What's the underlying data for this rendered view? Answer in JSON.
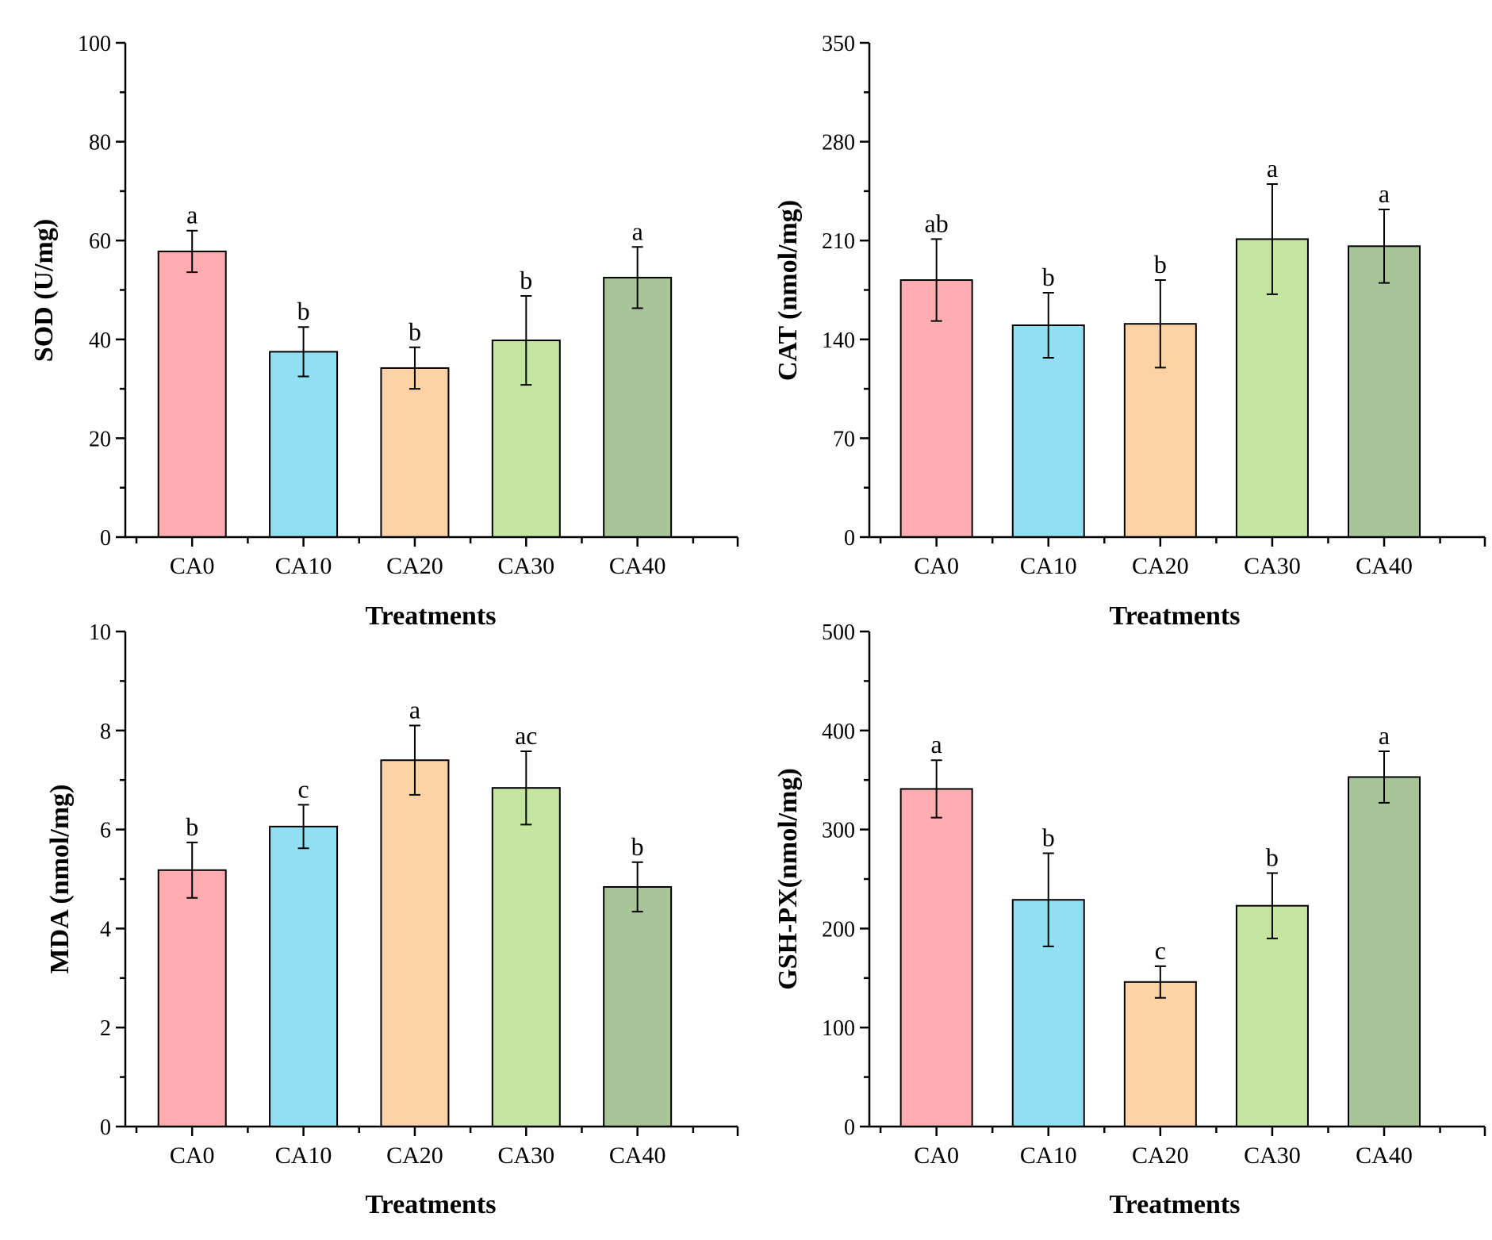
{
  "colors": {
    "CA0": "#ffadb0",
    "CA10": "#8fe0f2",
    "CA20": "#fdd3a6",
    "CA30": "#c4e6a1",
    "CA40": "#a8c599"
  },
  "chart_data": [
    {
      "type": "bar",
      "id": "sod",
      "ylabel": "SOD (U/mg)",
      "xlabel": "Treatments",
      "categories": [
        "CA0",
        "CA10",
        "CA20",
        "CA30",
        "CA40"
      ],
      "values": [
        57.8,
        37.5,
        34.2,
        39.8,
        52.5
      ],
      "errors": [
        4.2,
        5.0,
        4.2,
        9.0,
        6.2
      ],
      "significance": [
        "a",
        "b",
        "b",
        "b",
        "a"
      ],
      "ylim": [
        0,
        100
      ],
      "yticks": [
        0,
        20,
        40,
        60,
        80,
        100
      ],
      "ytick_labels": [
        "0",
        "20",
        "40",
        "60",
        "80",
        "100"
      ]
    },
    {
      "type": "bar",
      "id": "cat",
      "ylabel": "CAT (nmol/mg)",
      "xlabel": "Treatments",
      "categories": [
        "CA0",
        "CA10",
        "CA20",
        "CA30",
        "CA40"
      ],
      "values": [
        182,
        150,
        151,
        211,
        206
      ],
      "errors": [
        29,
        23,
        31,
        39,
        26
      ],
      "significance": [
        "ab",
        "b",
        "b",
        "a",
        "a"
      ],
      "ylim": [
        0,
        350
      ],
      "yticks": [
        0,
        70,
        140,
        210,
        280,
        350
      ],
      "ytick_labels": [
        "0",
        "70",
        "140",
        "210",
        "280",
        "350"
      ]
    },
    {
      "type": "bar",
      "id": "mda",
      "ylabel": "MDA (nmol/mg)",
      "xlabel": "Treatments",
      "categories": [
        "CA0",
        "CA10",
        "CA20",
        "CA30",
        "CA40"
      ],
      "values": [
        5.18,
        6.06,
        7.4,
        6.84,
        4.84
      ],
      "errors": [
        0.56,
        0.44,
        0.7,
        0.74,
        0.5
      ],
      "significance": [
        "b",
        "c",
        "a",
        "ac",
        "b"
      ],
      "ylim": [
        0,
        10
      ],
      "yticks": [
        0,
        2,
        4,
        6,
        8,
        10
      ],
      "ytick_labels": [
        "0",
        "2",
        "4",
        "6",
        "8",
        "10"
      ]
    },
    {
      "type": "bar",
      "id": "gshpx",
      "ylabel": "GSH-PX(nmol/mg)",
      "xlabel": "Treatments",
      "categories": [
        "CA0",
        "CA10",
        "CA20",
        "CA30",
        "CA40"
      ],
      "values": [
        341,
        229,
        146,
        223,
        353
      ],
      "errors": [
        29,
        47,
        16,
        33,
        26
      ],
      "significance": [
        "a",
        "b",
        "c",
        "b",
        "a"
      ],
      "ylim": [
        0,
        500
      ],
      "yticks": [
        0,
        100,
        200,
        300,
        400,
        500
      ],
      "ytick_labels": [
        "0",
        "100",
        "200",
        "300",
        "400",
        "500"
      ]
    }
  ]
}
